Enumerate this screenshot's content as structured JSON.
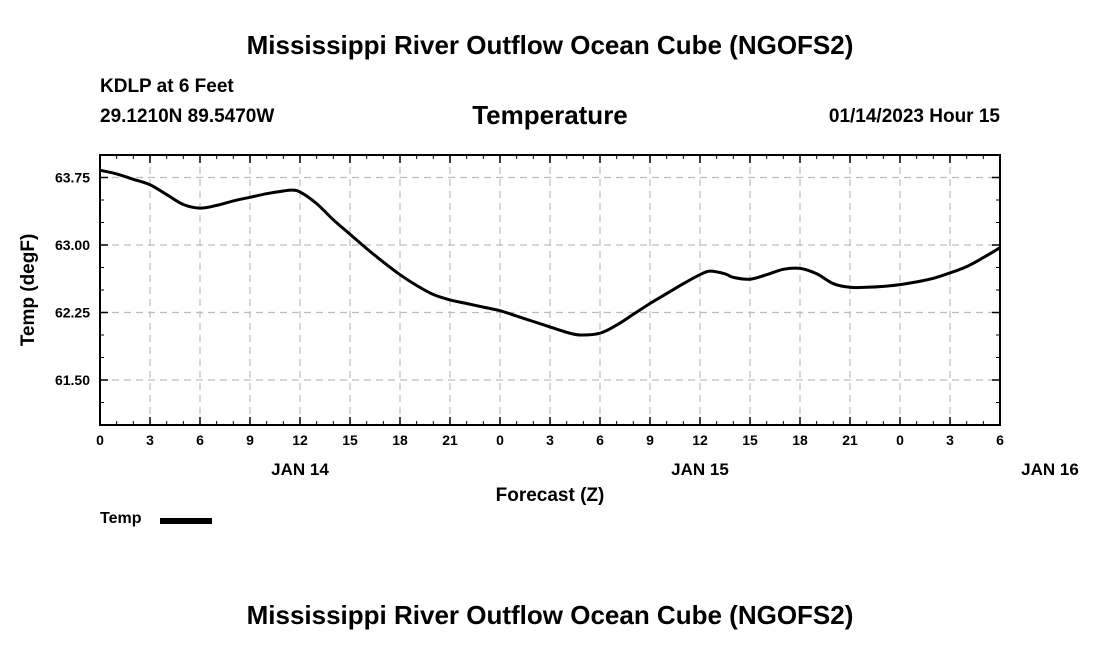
{
  "header": {
    "title": "Mississippi River Outflow Ocean Cube (NGOFS2)",
    "station": "KDLP at 6 Feet",
    "location": "29.1210N  89.5470W",
    "variable": "Temperature",
    "datetime": "01/14/2023 Hour 15"
  },
  "footer": {
    "title": "Mississippi River Outflow Ocean Cube (NGOFS2)"
  },
  "legend": {
    "label": "Temp"
  },
  "chart_data": {
    "type": "line",
    "title": "Temperature",
    "xlabel": "Forecast (Z)",
    "ylabel": "Temp (degF)",
    "x_tick_labels": [
      "0",
      "3",
      "6",
      "9",
      "12",
      "15",
      "18",
      "21",
      "0",
      "3",
      "6",
      "9",
      "12",
      "15",
      "18",
      "21",
      "0",
      "3",
      "6"
    ],
    "day_labels": [
      {
        "label": "JAN 14",
        "x_hour": 12
      },
      {
        "label": "JAN 15",
        "x_hour": 36
      },
      {
        "label": "JAN 16",
        "x_hour": 57
      }
    ],
    "xlim": [
      0,
      54
    ],
    "ylim": [
      61.0,
      64.0
    ],
    "y_ticks": [
      61.5,
      62.25,
      63.0,
      63.75
    ],
    "y_tick_labels": [
      "61.50",
      "62.25",
      "63.00",
      "63.75"
    ],
    "grid": true,
    "series": [
      {
        "name": "Temp",
        "x": [
          0,
          1,
          2,
          3,
          4,
          5,
          6,
          7,
          8,
          9,
          10,
          11,
          11.5,
          12,
          13,
          14,
          15,
          16,
          17,
          18,
          19,
          20,
          21,
          22,
          23,
          24,
          25,
          26,
          27,
          28,
          28.8,
          30,
          31,
          32,
          33,
          34,
          35,
          36,
          36.6,
          37.5,
          38,
          39,
          40,
          41,
          42,
          43,
          44,
          45,
          46,
          47,
          48,
          49,
          50,
          51,
          52,
          53,
          54
        ],
        "y": [
          63.83,
          63.79,
          63.73,
          63.67,
          63.56,
          63.45,
          63.41,
          63.44,
          63.49,
          63.53,
          63.57,
          63.6,
          63.61,
          63.59,
          63.46,
          63.28,
          63.12,
          62.96,
          62.81,
          62.67,
          62.55,
          62.45,
          62.39,
          62.35,
          62.31,
          62.27,
          62.21,
          62.15,
          62.09,
          62.03,
          62.0,
          62.02,
          62.11,
          62.23,
          62.35,
          62.46,
          62.57,
          62.67,
          62.71,
          62.68,
          62.64,
          62.62,
          62.67,
          62.73,
          62.74,
          62.68,
          62.57,
          62.53,
          62.53,
          62.54,
          62.56,
          62.59,
          62.63,
          62.69,
          62.76,
          62.86,
          62.97
        ]
      }
    ]
  }
}
